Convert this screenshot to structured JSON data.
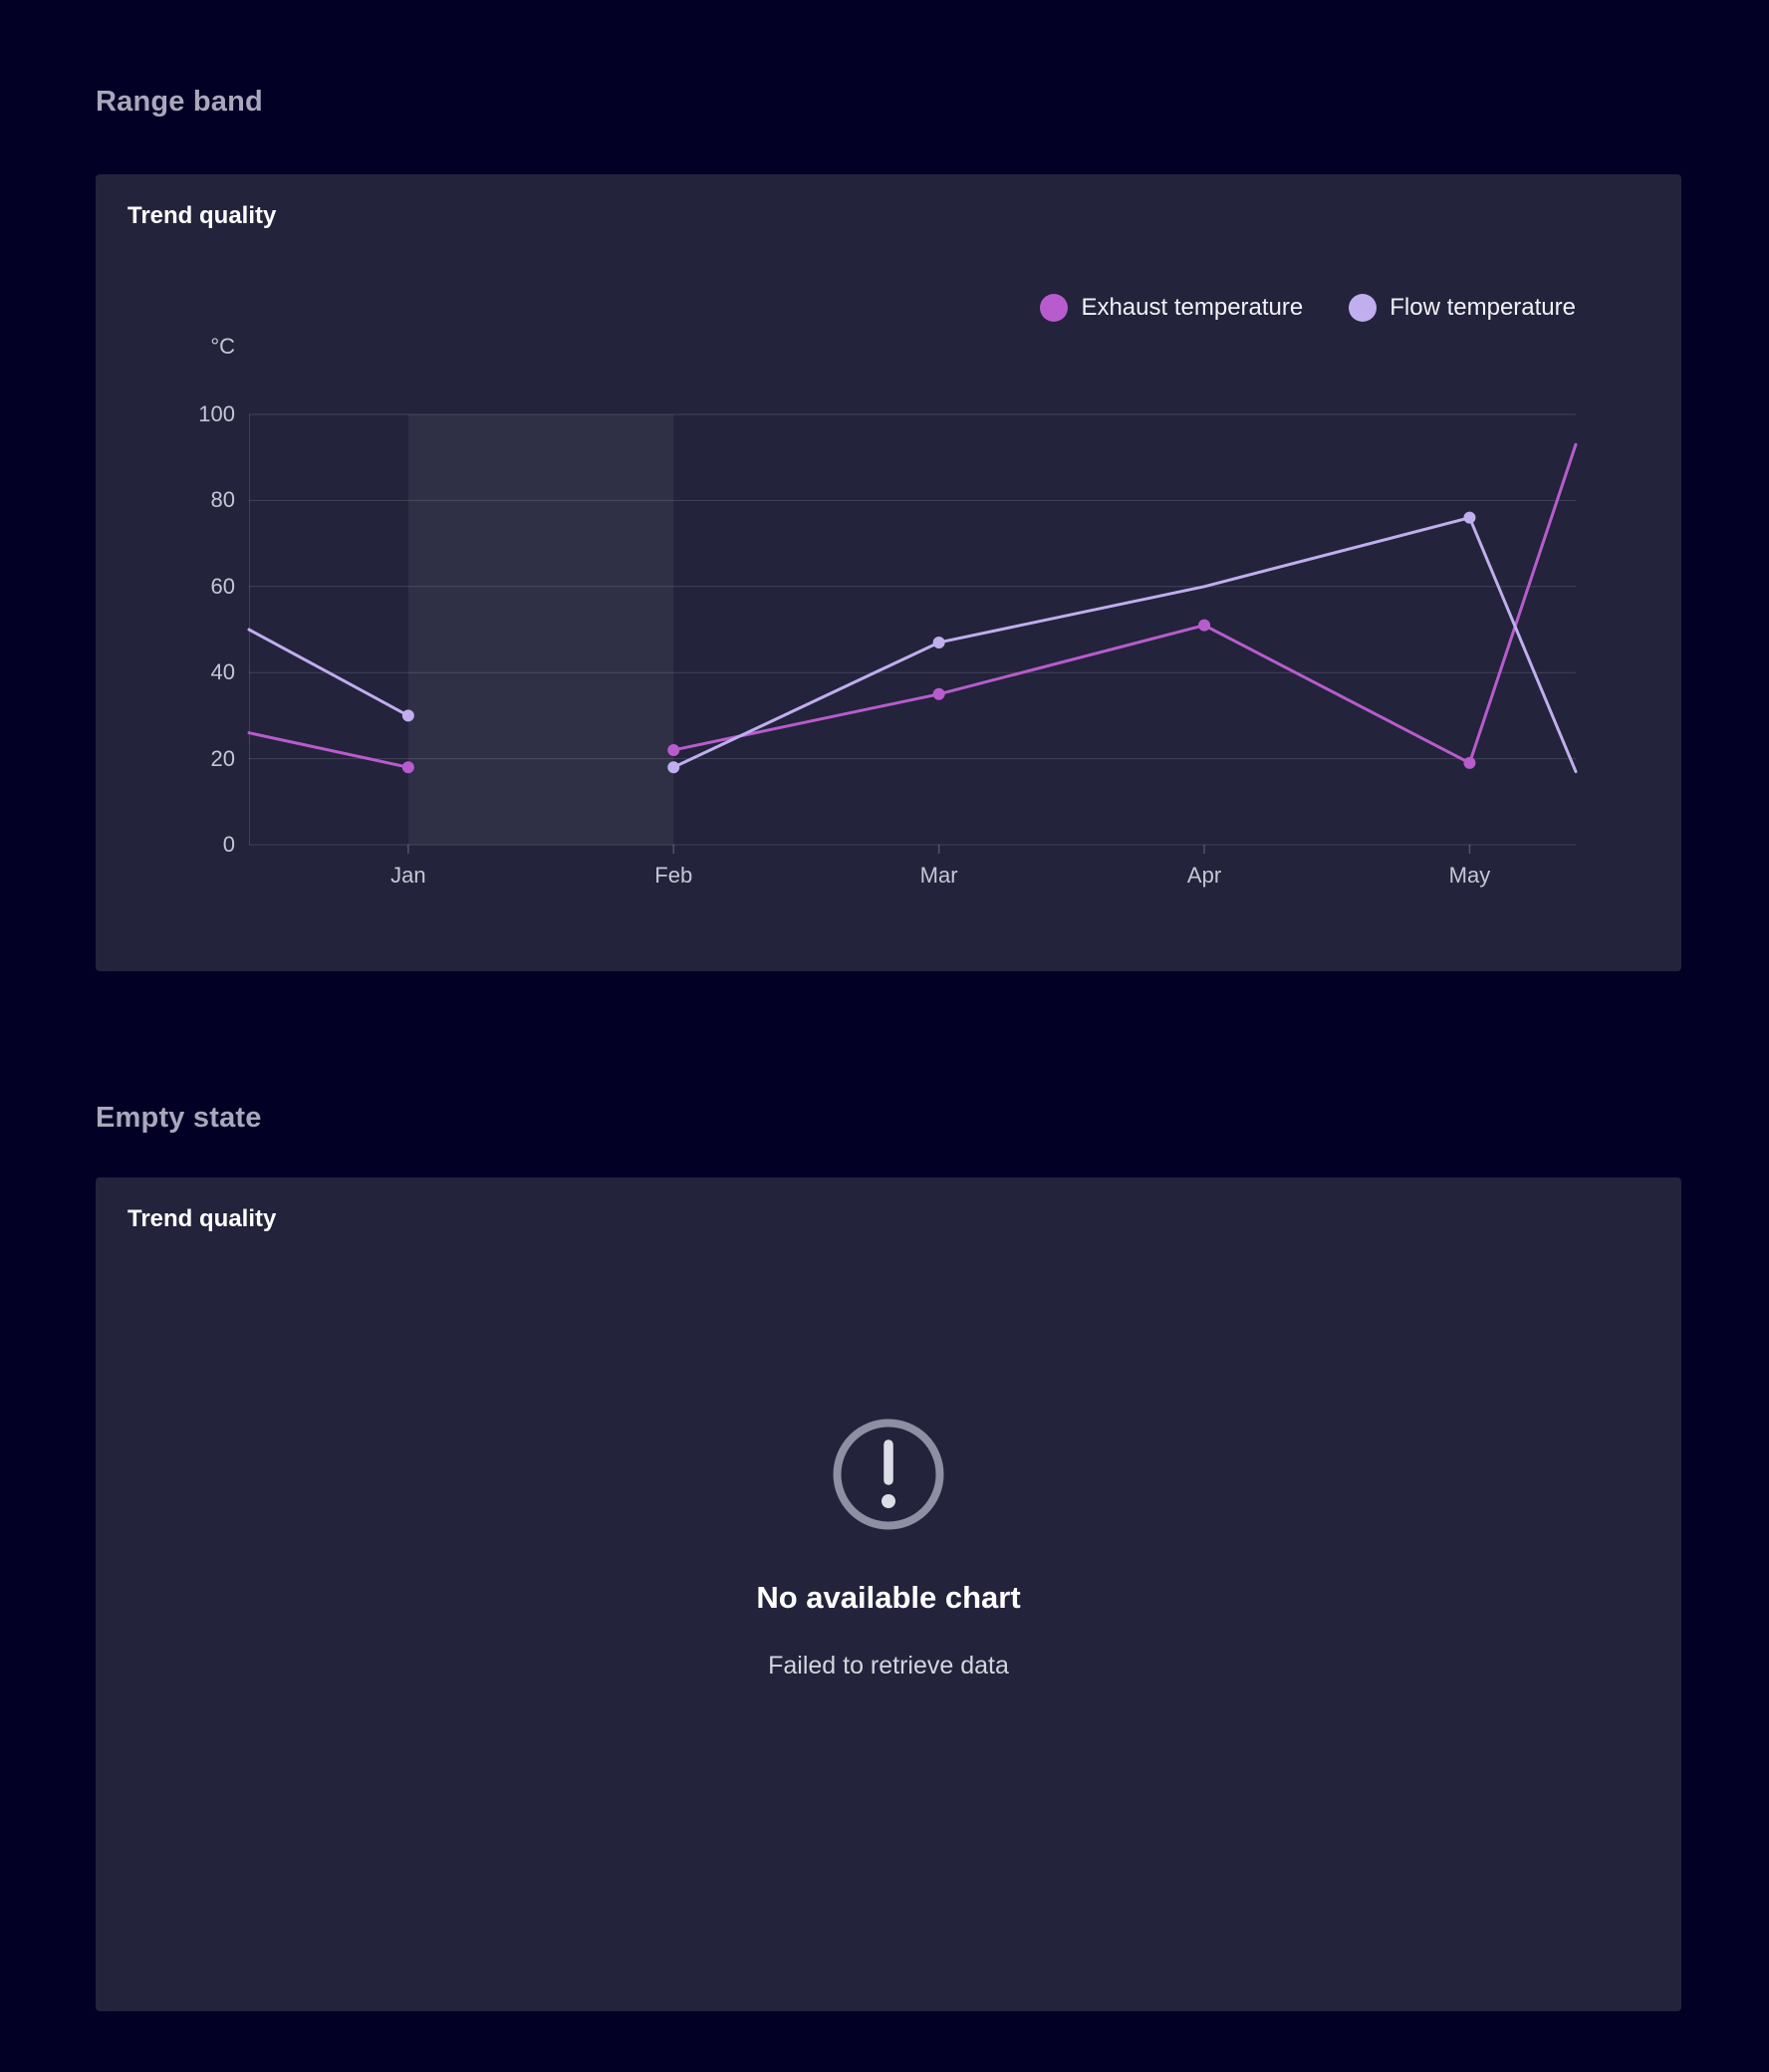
{
  "page": {
    "background": "#020024"
  },
  "section_range_band": {
    "heading": "Range band"
  },
  "section_empty_state": {
    "heading": "Empty state"
  },
  "range_band_card": {
    "title": "Trend quality",
    "legend": [
      {
        "label": "Exhaust temperature",
        "color": "#b85ccd",
        "dot_style": "background:#b85ccd"
      },
      {
        "label": "Flow temperature",
        "color": "#c0aeee",
        "dot_style": "background:#c0aeee"
      }
    ]
  },
  "chart_data": {
    "type": "line",
    "title": "Trend quality",
    "y_axis": {
      "unit": "°C",
      "ticks": [
        0,
        20,
        40,
        60,
        80,
        100
      ],
      "min": 0,
      "max": 100
    },
    "x_axis": {
      "ticks": [
        {
          "label": "Jan",
          "x": 0.12
        },
        {
          "label": "Feb",
          "x": 0.32
        },
        {
          "label": "Mar",
          "x": 0.52
        },
        {
          "label": "Apr",
          "x": 0.72
        },
        {
          "label": "May",
          "x": 0.92
        }
      ]
    },
    "grid": "horizontal",
    "grid_color": "rgba(255,255,255,0.14)",
    "axis_tick_color": "rgba(255,255,255,0.22)",
    "range_band": {
      "from_label": "Jan",
      "to_label": "Feb",
      "x_from": 0.12,
      "x_to": 0.32,
      "fill": "rgba(255,255,255,0.055)"
    },
    "line_width": 3,
    "marker_radius": 6,
    "series": [
      {
        "name": "Exhaust temperature",
        "color": "#b85ccd",
        "points": [
          {
            "x": 0,
            "y": 26
          },
          {
            "x": 0.12,
            "y": 18,
            "marker": true
          },
          null,
          {
            "x": 0.32,
            "y": 22,
            "marker": true
          },
          {
            "x": 0.52,
            "y": 35,
            "marker": true
          },
          {
            "x": 0.72,
            "y": 51,
            "marker": true
          },
          {
            "x": 0.92,
            "y": 19,
            "marker": true
          },
          {
            "x": 1,
            "y": 93
          }
        ]
      },
      {
        "name": "Flow temperature",
        "color": "#c0aeee",
        "points": [
          {
            "x": 0,
            "y": 50
          },
          {
            "x": 0.12,
            "y": 30,
            "marker": true
          },
          null,
          {
            "x": 0.32,
            "y": 18,
            "marker": true
          },
          {
            "x": 0.52,
            "y": 47,
            "marker": true
          },
          {
            "x": 0.72,
            "y": 60
          },
          {
            "x": 0.92,
            "y": 76,
            "marker": true
          },
          {
            "x": 1,
            "y": 17
          }
        ]
      }
    ],
    "legend_position": "top-right"
  },
  "empty_state_card": {
    "title": "Trend quality",
    "icon": "exclamation-circle-icon",
    "heading": "No available chart",
    "message": "Failed to retrieve data"
  }
}
